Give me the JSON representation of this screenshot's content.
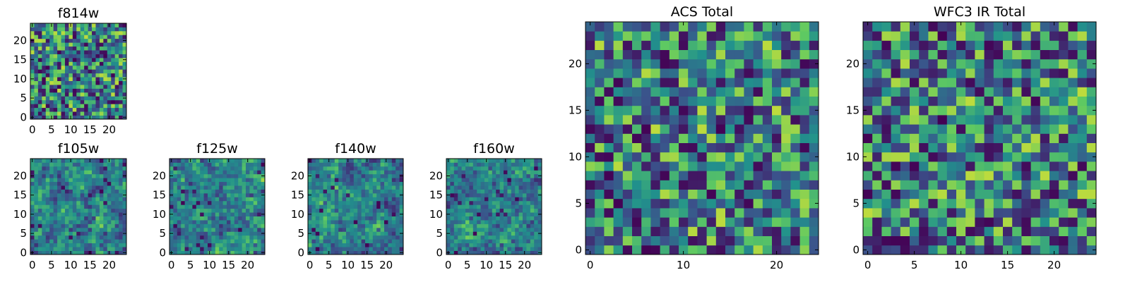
{
  "chart_data": {
    "type": "heatmap",
    "colormap": "viridis",
    "grid": false,
    "panels": [
      {
        "id": "f814w",
        "title": "f814w",
        "xticks": [
          0,
          5,
          10,
          15,
          20
        ],
        "yticks": [
          0,
          5,
          10,
          15,
          20
        ],
        "xlim": [
          0,
          24
        ],
        "ylim": [
          0,
          24
        ]
      },
      {
        "id": "f105w",
        "title": "f105w",
        "xticks": [
          0,
          5,
          10,
          15,
          20
        ],
        "yticks": [
          0,
          5,
          10,
          15,
          20
        ],
        "xlim": [
          0,
          24
        ],
        "ylim": [
          0,
          24
        ]
      },
      {
        "id": "f125w",
        "title": "f125w",
        "xticks": [
          0,
          5,
          10,
          15,
          20
        ],
        "yticks": [
          0,
          5,
          10,
          15,
          20
        ],
        "xlim": [
          0,
          24
        ],
        "ylim": [
          0,
          24
        ]
      },
      {
        "id": "f140w",
        "title": "f140w",
        "xticks": [
          0,
          5,
          10,
          15,
          20
        ],
        "yticks": [
          0,
          5,
          10,
          15,
          20
        ],
        "xlim": [
          0,
          24
        ],
        "ylim": [
          0,
          24
        ]
      },
      {
        "id": "f160w",
        "title": "f160w",
        "xticks": [
          0,
          5,
          10,
          15,
          20
        ],
        "yticks": [
          0,
          5,
          10,
          15,
          20
        ],
        "xlim": [
          0,
          24
        ],
        "ylim": [
          0,
          24
        ]
      },
      {
        "id": "acs-total",
        "title": "ACS Total",
        "xticks": [
          0,
          10,
          20
        ],
        "yticks": [
          0,
          5,
          10,
          15,
          20
        ],
        "xlim": [
          0,
          24
        ],
        "ylim": [
          0,
          24
        ]
      },
      {
        "id": "wfc3-ir-total",
        "title": "WFC3 IR Total",
        "xticks": [
          0,
          5,
          10,
          15,
          20
        ],
        "yticks": [
          0,
          5,
          10,
          15,
          20
        ],
        "xlim": [
          0,
          24
        ],
        "ylim": [
          0,
          24
        ]
      }
    ]
  }
}
